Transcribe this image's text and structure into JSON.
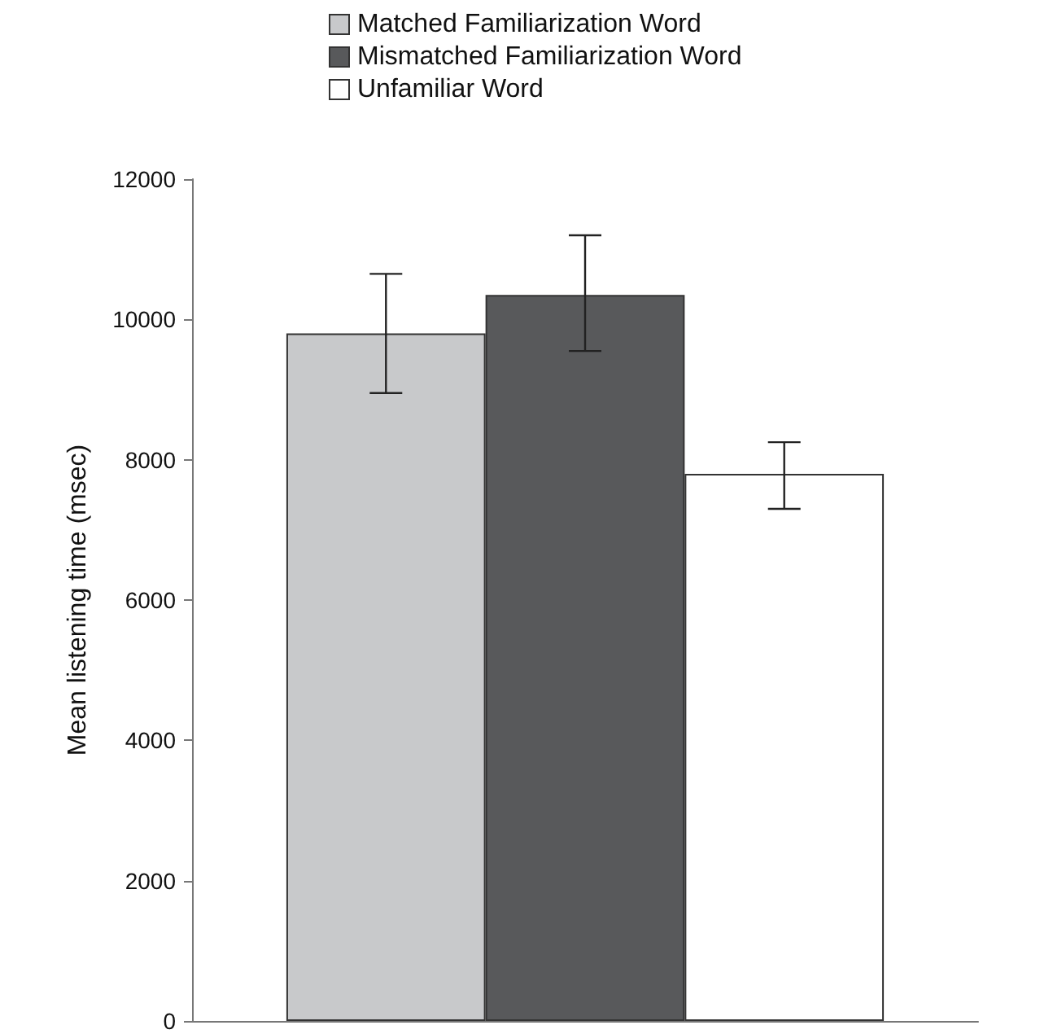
{
  "chart_data": {
    "type": "bar",
    "ylabel": "Mean listening time (msec)",
    "categories": [
      null
    ],
    "series": [
      {
        "name": "Matched Familiarization Word",
        "color": "#c8c9cb",
        "values": [
          9800
        ],
        "errors": [
          [
            8950,
            10650
          ]
        ]
      },
      {
        "name": "Mismatched Familiarization Word",
        "color": "#58595b",
        "values": [
          10350
        ],
        "errors": [
          [
            9550,
            11200
          ]
        ]
      },
      {
        "name": "Unfamiliar Word",
        "color": "#ffffff",
        "values": [
          7800
        ],
        "errors": [
          [
            7300,
            8250
          ]
        ]
      }
    ],
    "ylim": [
      0,
      12000
    ],
    "yticks": [
      0,
      2000,
      4000,
      6000,
      8000,
      10000,
      12000
    ],
    "grid": false,
    "legend": "top"
  }
}
